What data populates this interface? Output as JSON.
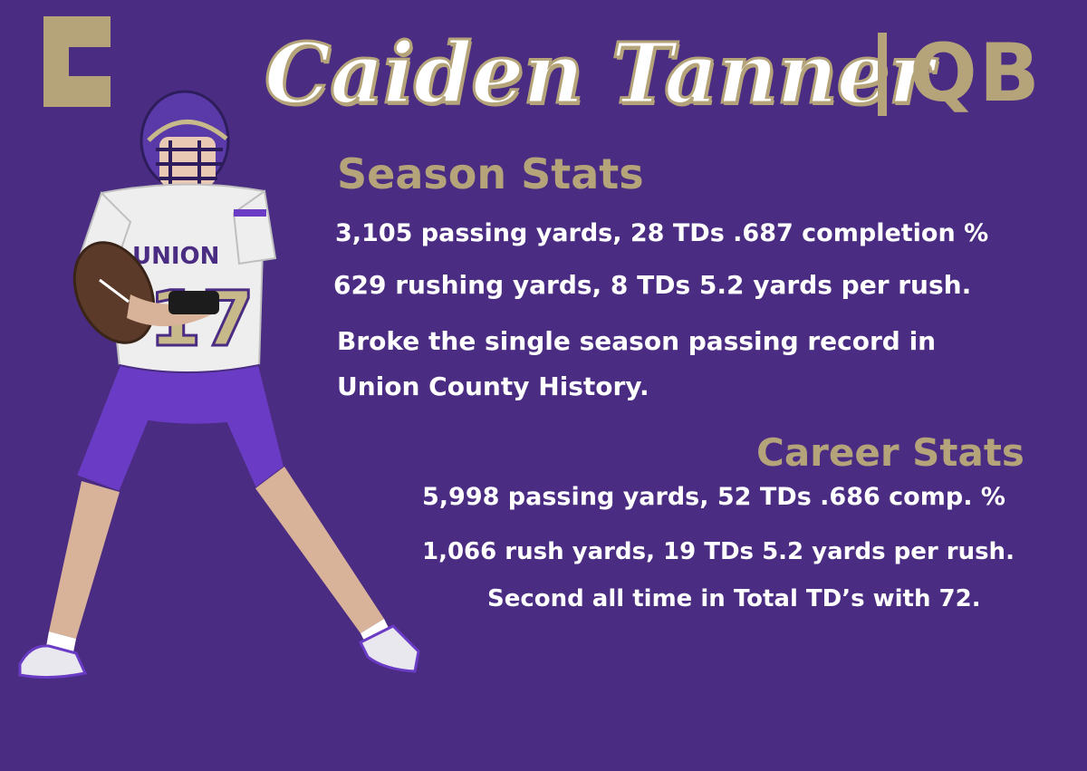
{
  "logo": {
    "letter": "C",
    "color": "#b5a47a"
  },
  "header": {
    "name": "Caiden Tanner",
    "position": "QB",
    "name_color": "#ffffff",
    "accent_color": "#b5a47a"
  },
  "player": {
    "jersey_text": "UNION",
    "jersey_number": "17"
  },
  "season": {
    "heading": "Season Stats",
    "lines": [
      "3,105 passing yards, 28 TDs .687 completion %",
      "629 rushing yards, 8 TDs 5.2 yards per rush.",
      "Broke the single season passing record in Union County History."
    ]
  },
  "career": {
    "heading": "Career Stats",
    "lines": [
      "5,998 passing yards, 52 TDs .686 comp. %",
      "1,066 rush yards, 19 TDs 5.2 yards per rush.",
      "Second all time in Total TD’s with 72."
    ]
  },
  "colors": {
    "background": "#4a2c82",
    "gold": "#b5a47a",
    "uniform_purple": "#6a3bc4"
  }
}
